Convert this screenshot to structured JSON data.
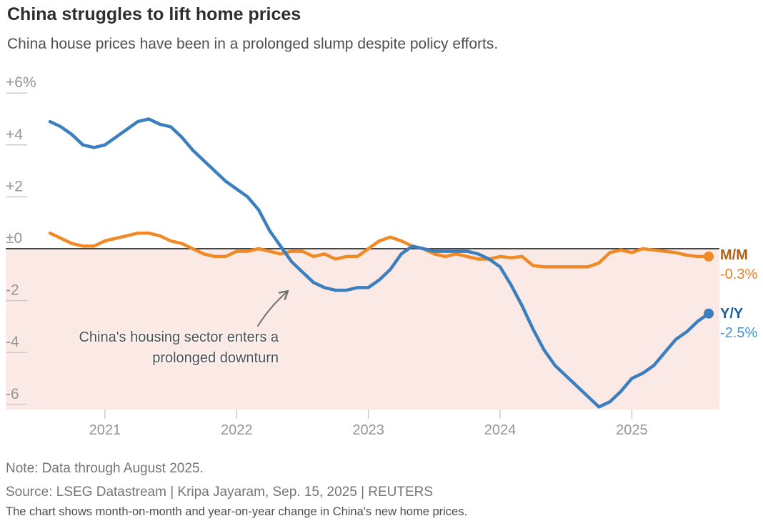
{
  "header": {
    "title": "China struggles to lift home prices",
    "subtitle": "China house prices have been in a prolonged slump despite policy efforts."
  },
  "annotation": {
    "line1": "China's housing sector enters a",
    "line2": "prolonged downturn"
  },
  "end_labels": {
    "mm_name": "M/M",
    "mm_value": "-0.3%",
    "yy_name": "Y/Y",
    "yy_value": "-2.5%"
  },
  "footer": {
    "note": "Note: Data through August 2025.",
    "source": "Source: LSEG Datastream | Kripa Jayaram, Sep. 15, 2025 | REUTERS",
    "caption": "The chart shows month-on-month and year-on-year change in China's new home prices."
  },
  "colors": {
    "mm_line": "#ef8a26",
    "yy_line": "#3c7fbe",
    "mm_label": "#b45f0d",
    "mm_value": "#e0812c",
    "yy_label": "#1e5f9e",
    "yy_value": "#4493cf",
    "shade_below_zero": "#fbe9e6",
    "zero_line": "#454545",
    "tick_line": "#cccccc",
    "axis_text": "#959595",
    "arrow": "#6f6f6f"
  },
  "chart_data": {
    "type": "line",
    "title": "China struggles to lift home prices",
    "subtitle": "China house prices have been in a prolonged slump despite policy efforts.",
    "unit": "% change in new home prices",
    "x_range": [
      "2020-08",
      "2025-08"
    ],
    "ylim": [
      -6.2,
      6.5
    ],
    "grid": false,
    "legend_position": "right-of-line-ends",
    "shaded_below_zero": true,
    "categories": [
      "2020-08",
      "2020-09",
      "2020-10",
      "2020-11",
      "2020-12",
      "2021-01",
      "2021-02",
      "2021-03",
      "2021-04",
      "2021-05",
      "2021-06",
      "2021-07",
      "2021-08",
      "2021-09",
      "2021-10",
      "2021-11",
      "2021-12",
      "2022-01",
      "2022-02",
      "2022-03",
      "2022-04",
      "2022-05",
      "2022-06",
      "2022-07",
      "2022-08",
      "2022-09",
      "2022-10",
      "2022-11",
      "2022-12",
      "2023-01",
      "2023-02",
      "2023-03",
      "2023-04",
      "2023-05",
      "2023-06",
      "2023-07",
      "2023-08",
      "2023-09",
      "2023-10",
      "2023-11",
      "2023-12",
      "2024-01",
      "2024-02",
      "2024-03",
      "2024-04",
      "2024-05",
      "2024-06",
      "2024-07",
      "2024-08",
      "2024-09",
      "2024-10",
      "2024-11",
      "2024-12",
      "2025-01",
      "2025-02",
      "2025-03",
      "2025-04",
      "2025-05",
      "2025-06",
      "2025-07",
      "2025-08"
    ],
    "series": [
      {
        "name": "M/M",
        "color": "#ef8a26",
        "values": [
          0.6,
          0.4,
          0.2,
          0.1,
          0.1,
          0.3,
          0.4,
          0.5,
          0.6,
          0.6,
          0.5,
          0.3,
          0.2,
          0.0,
          -0.2,
          -0.3,
          -0.3,
          -0.1,
          -0.1,
          0.0,
          -0.1,
          -0.2,
          -0.1,
          -0.1,
          -0.3,
          -0.2,
          -0.4,
          -0.3,
          -0.3,
          0.0,
          0.3,
          0.45,
          0.3,
          0.1,
          0.0,
          -0.2,
          -0.3,
          -0.2,
          -0.3,
          -0.4,
          -0.4,
          -0.3,
          -0.35,
          -0.3,
          -0.65,
          -0.7,
          -0.7,
          -0.7,
          -0.7,
          -0.7,
          -0.55,
          -0.15,
          -0.05,
          -0.15,
          0.0,
          -0.05,
          -0.1,
          -0.15,
          -0.25,
          -0.3,
          -0.3
        ]
      },
      {
        "name": "Y/Y",
        "color": "#3c7fbe",
        "values": [
          4.9,
          4.7,
          4.4,
          4.0,
          3.9,
          4.0,
          4.3,
          4.6,
          4.9,
          5.0,
          4.8,
          4.7,
          4.3,
          3.8,
          3.4,
          3.0,
          2.6,
          2.3,
          2.0,
          1.5,
          0.7,
          0.1,
          -0.5,
          -0.9,
          -1.3,
          -1.5,
          -1.6,
          -1.6,
          -1.5,
          -1.5,
          -1.2,
          -0.8,
          -0.2,
          0.1,
          0.0,
          -0.1,
          -0.1,
          -0.1,
          -0.1,
          -0.2,
          -0.4,
          -0.7,
          -1.4,
          -2.2,
          -3.1,
          -3.9,
          -4.5,
          -4.9,
          -5.3,
          -5.7,
          -6.1,
          -5.9,
          -5.5,
          -5.0,
          -4.8,
          -4.5,
          -4.0,
          -3.5,
          -3.2,
          -2.8,
          -2.5
        ]
      }
    ],
    "y_ticks": [
      {
        "label": "+6%",
        "value": 6
      },
      {
        "label": "+4",
        "value": 4
      },
      {
        "label": "+2",
        "value": 2
      },
      {
        "label": "±0",
        "value": 0
      },
      {
        "label": "-2",
        "value": -2
      },
      {
        "label": "-4",
        "value": -4
      },
      {
        "label": "-6",
        "value": -6
      }
    ],
    "x_ticks": [
      {
        "label": "2021",
        "index": 5
      },
      {
        "label": "2022",
        "index": 17
      },
      {
        "label": "2023",
        "index": 29
      },
      {
        "label": "2024",
        "index": 41
      },
      {
        "label": "2025",
        "index": 53
      }
    ]
  }
}
